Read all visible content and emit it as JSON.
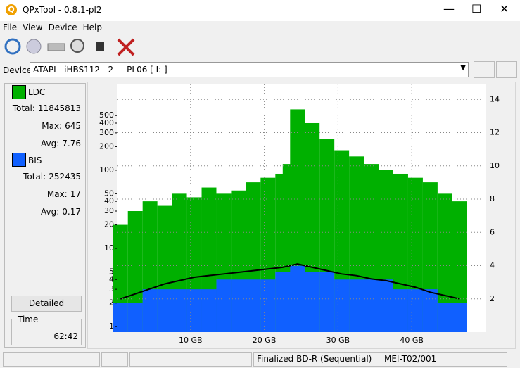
{
  "window": {
    "title": "QPxTool - 0.8.1-pl2",
    "menu": [
      "File",
      "View",
      "Device",
      "Help"
    ],
    "device_label": "Device:",
    "device": "ATAPI   iHBS112   2     PL06 [ I: ]",
    "button": "Detailed",
    "time_label": "Time",
    "time": "62:42",
    "status": [
      "Finalized BD-R (Sequential)",
      "MEI-T02/001"
    ]
  },
  "stats": [
    {
      "rows": [
        [
          "Total:",
          "11845813"
        ],
        [
          "Max:",
          "645"
        ],
        [
          "Avg:",
          "7.76"
        ]
      ]
    },
    {
      "rows": [
        [
          "Total:",
          "252435"
        ],
        [
          "Max:",
          "17"
        ],
        [
          "Avg:",
          "0.17"
        ]
      ]
    }
  ],
  "chart_data": {
    "type": "bar",
    "log_scale": true,
    "grid": true,
    "x": [
      0.5,
      2.5,
      4.5,
      6.5,
      8.5,
      10.5,
      12.5,
      14.5,
      16.5,
      18.5,
      20.5,
      22.5,
      23.5,
      24.5,
      26.5,
      28.5,
      30.5,
      32.5,
      34.5,
      36.5,
      38.5,
      40.5,
      42.5,
      44.5,
      46.5
    ],
    "series": [
      {
        "name": "LDC",
        "color": "#00b000",
        "values": [
          20,
          30,
          40,
          35,
          50,
          45,
          60,
          50,
          55,
          70,
          80,
          90,
          120,
          600,
          400,
          250,
          180,
          150,
          120,
          100,
          90,
          80,
          70,
          50,
          40
        ]
      },
      {
        "name": "BIS",
        "color": "#1060ff",
        "values": [
          2,
          2,
          3,
          3,
          3,
          3,
          3,
          4,
          4,
          4,
          4,
          5,
          5,
          6,
          5,
          5,
          4,
          4,
          4,
          4,
          3,
          3,
          3,
          2,
          2
        ]
      },
      {
        "color": "#000000",
        "axis": "y2",
        "values": [
          2.0,
          2.3,
          2.6,
          2.9,
          3.1,
          3.3,
          3.4,
          3.5,
          3.6,
          3.7,
          3.8,
          3.9,
          4.0,
          4.1,
          3.9,
          3.7,
          3.5,
          3.4,
          3.2,
          3.1,
          2.9,
          2.7,
          2.4,
          2.2,
          2.0
        ]
      }
    ],
    "xlim": [
      0,
      50
    ],
    "xticks": [
      {
        "value": 10,
        "label": "10 GB"
      },
      {
        "value": 20,
        "label": "20 GB"
      },
      {
        "value": 30,
        "label": "30 GB"
      },
      {
        "value": 40,
        "label": "40 GB"
      }
    ],
    "ylim": [
      0.85,
      1250
    ],
    "yticks": [
      1,
      2,
      3,
      4,
      5,
      10,
      20,
      30,
      40,
      50,
      100,
      200,
      300,
      400,
      500
    ],
    "y2lim": [
      0,
      14.9
    ],
    "y2ticks": [
      2,
      4,
      6,
      8,
      10,
      12,
      14
    ]
  }
}
